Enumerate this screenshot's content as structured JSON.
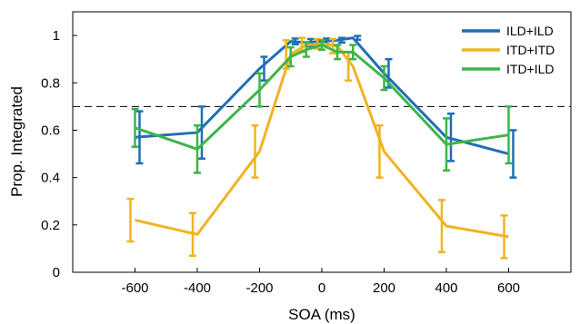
{
  "chart_data": {
    "type": "line",
    "xlabel": "SOA (ms)",
    "ylabel": "Prop. Integrated",
    "xlim": [
      -800,
      800
    ],
    "ylim": [
      0,
      1.1
    ],
    "xticks": [
      -600,
      -400,
      -200,
      0,
      200,
      400,
      600
    ],
    "yticks": [
      0,
      0.2,
      0.4,
      0.6,
      0.8,
      1
    ],
    "grid": false,
    "legend_position": "top-right",
    "reference_line": {
      "y": 0.7,
      "style": "dashed"
    },
    "series": [
      {
        "name": "ILD+ILD",
        "color": "#1f6fb5",
        "x": [
          -600,
          -400,
          -200,
          -100,
          -50,
          0,
          50,
          100,
          200,
          400,
          600
        ],
        "y": [
          0.57,
          0.59,
          0.86,
          0.975,
          0.97,
          0.975,
          0.98,
          0.99,
          0.84,
          0.57,
          0.5
        ],
        "err": [
          0.11,
          0.11,
          0.05,
          0.012,
          0.015,
          0.012,
          0.01,
          0.008,
          0.06,
          0.1,
          0.1
        ]
      },
      {
        "name": "ITD+ITD",
        "color": "#f0b323",
        "x": [
          -600,
          -400,
          -200,
          -100,
          -50,
          0,
          50,
          100,
          200,
          400,
          600
        ],
        "y": [
          0.22,
          0.16,
          0.51,
          0.92,
          0.96,
          0.965,
          0.955,
          0.87,
          0.51,
          0.195,
          0.15
        ],
        "err": [
          0.09,
          0.09,
          0.11,
          0.06,
          0.03,
          0.02,
          0.03,
          0.06,
          0.11,
          0.11,
          0.09
        ]
      },
      {
        "name": "ITD+ILD",
        "color": "#3db54a",
        "x": [
          -600,
          -400,
          -200,
          -100,
          -50,
          0,
          50,
          100,
          200,
          400,
          600
        ],
        "y": [
          0.61,
          0.52,
          0.77,
          0.91,
          0.94,
          0.96,
          0.93,
          0.93,
          0.82,
          0.54,
          0.58
        ],
        "err": [
          0.08,
          0.1,
          0.07,
          0.04,
          0.03,
          0.02,
          0.03,
          0.03,
          0.05,
          0.11,
          0.12
        ]
      }
    ]
  }
}
